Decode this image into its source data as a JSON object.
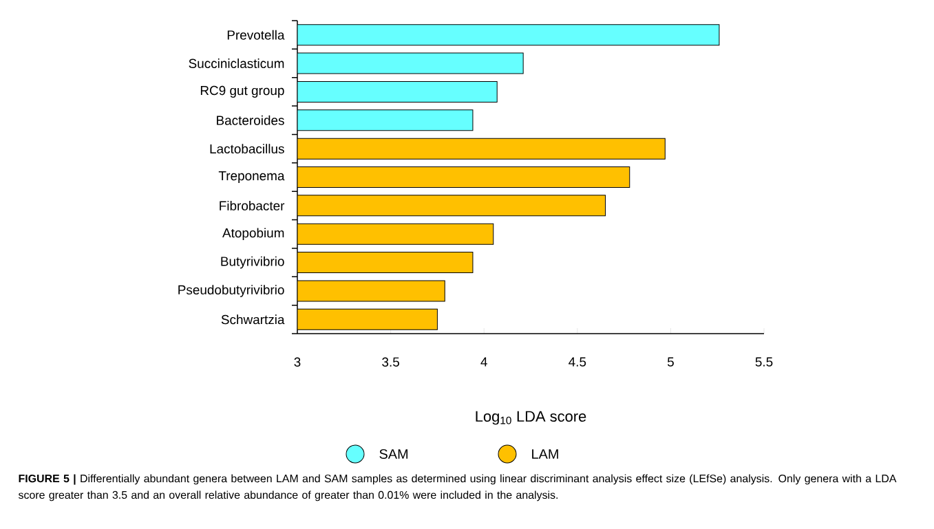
{
  "chart_data": {
    "type": "bar",
    "orientation": "horizontal",
    "categories": [
      "Prevotella",
      "Succiniclasticum",
      "RC9 gut group",
      "Bacteroides",
      "Lactobacillus",
      "Treponema",
      "Fibrobacter",
      "Atopobium",
      "Butyrivibrio",
      "Pseudobutyrivibrio",
      "Schwartzia"
    ],
    "series": [
      {
        "name": "SAM",
        "color": "#66ffff",
        "values": [
          5.26,
          4.21,
          4.07,
          3.94,
          null,
          null,
          null,
          null,
          null,
          null,
          null
        ]
      },
      {
        "name": "LAM",
        "color": "#ffc000",
        "values": [
          null,
          null,
          null,
          null,
          4.97,
          4.78,
          4.65,
          4.05,
          3.94,
          3.79,
          3.75
        ]
      }
    ],
    "xlabel": "Log$_{10}$ LDA score",
    "xlim": [
      3,
      5.5
    ],
    "xticks": [
      3,
      3.5,
      4,
      4.5,
      5,
      5.5
    ],
    "legend": "bottom",
    "annotations": [
      "**FIGURE 5 |** Differentially abundant genera between LAM and SAM samples as determined using linear discriminant analysis effect size (LEfSe) analysis. Only genera with a LDA score greater than 3.5 and an overall relative abundance of greater than 0.01% were included in the analysis."
    ]
  }
}
